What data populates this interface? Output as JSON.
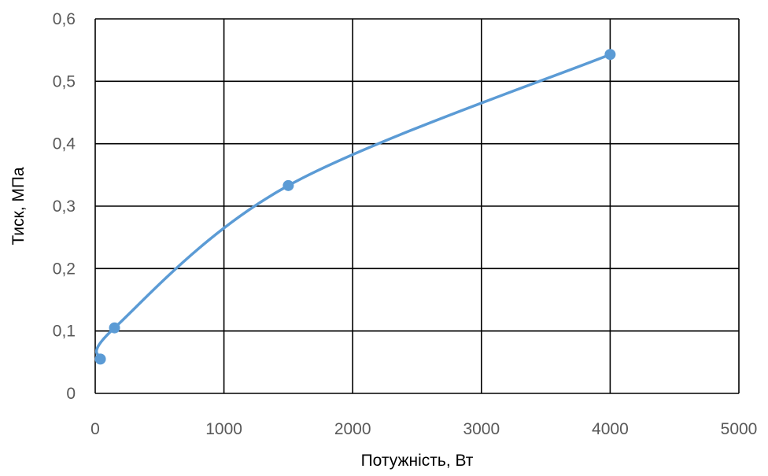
{
  "chart_data": {
    "type": "scatter",
    "title": "",
    "xlabel": "Потужність, Вт",
    "ylabel": "Тиск, МПа",
    "xlim": [
      0,
      5000
    ],
    "ylim": [
      0,
      0.6
    ],
    "x_ticks": [
      0,
      1000,
      2000,
      3000,
      4000,
      5000
    ],
    "x_tick_labels": [
      "0",
      "1000",
      "2000",
      "3000",
      "4000",
      "5000"
    ],
    "y_ticks": [
      0,
      0.1,
      0.2,
      0.3,
      0.4,
      0.5,
      0.6
    ],
    "y_tick_labels": [
      "0",
      "0,1",
      "0,2",
      "0,3",
      "0,4",
      "0,5",
      "0,6"
    ],
    "grid": true,
    "line_style": "smooth",
    "series": [
      {
        "color": "#5B9BD5",
        "x": [
          40,
          150,
          1500,
          4000
        ],
        "y": [
          0.055,
          0.105,
          0.333,
          0.543
        ]
      }
    ]
  }
}
